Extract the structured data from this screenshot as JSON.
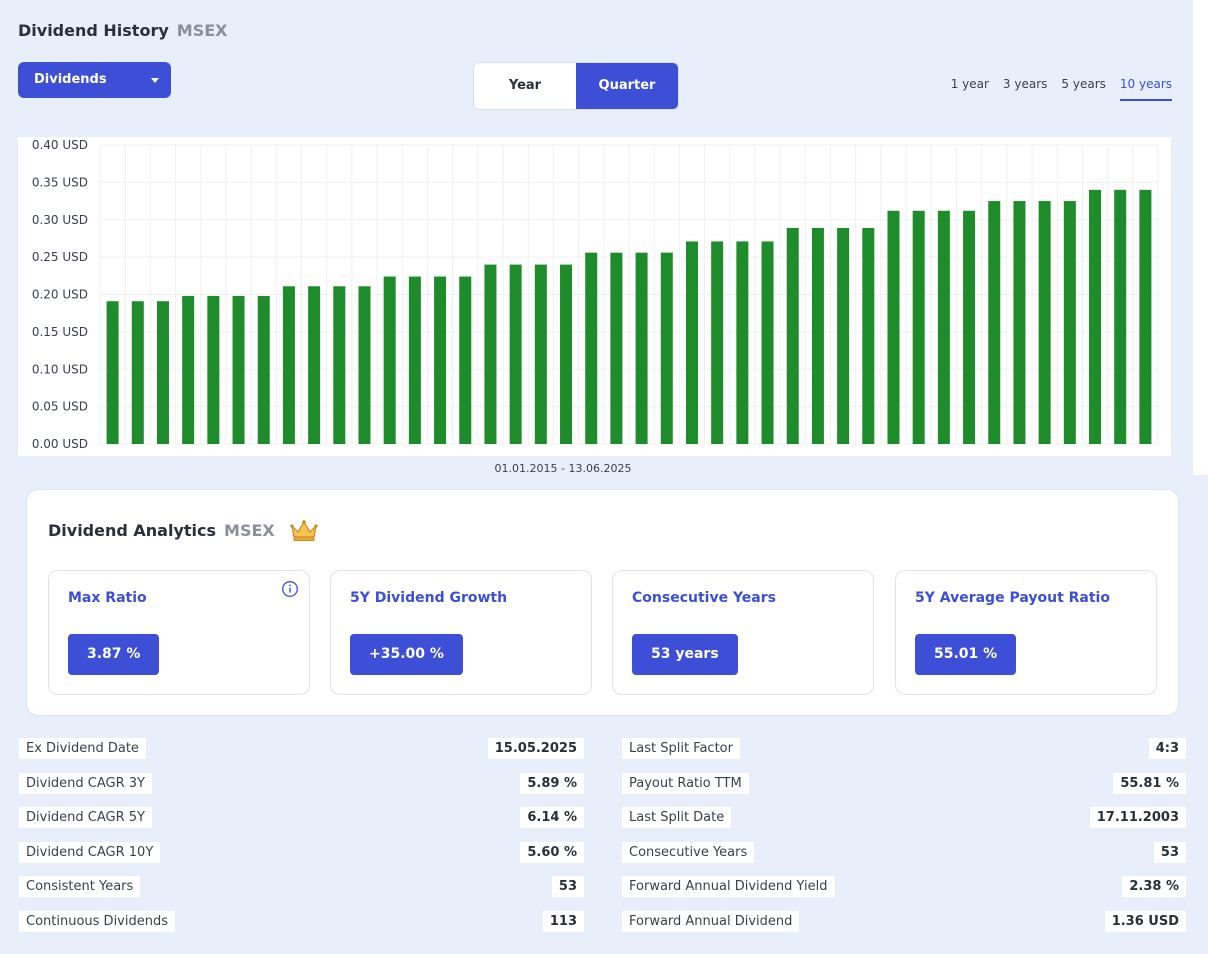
{
  "header": {
    "title": "Dividend History",
    "ticker": "MSEX"
  },
  "dropdown": {
    "selected": "Dividends"
  },
  "period_toggle": {
    "year": "Year",
    "quarter": "Quarter",
    "active": "Quarter"
  },
  "ranges": {
    "items": [
      "1 year",
      "3 years",
      "5 years",
      "10 years"
    ],
    "active": "10 years"
  },
  "chart_data": {
    "type": "bar",
    "xlabel": "01.01.2015 - 13.06.2025",
    "ylim": [
      0,
      0.4
    ],
    "y_ticks": [
      "0.00 USD",
      "0.05 USD",
      "0.10 USD",
      "0.15 USD",
      "0.20 USD",
      "0.25 USD",
      "0.30 USD",
      "0.35 USD",
      "0.40 USD"
    ],
    "grid": true,
    "bar_color": "#1e8c2a",
    "values": [
      0.191,
      0.191,
      0.191,
      0.198,
      0.198,
      0.198,
      0.198,
      0.211,
      0.211,
      0.211,
      0.211,
      0.224,
      0.224,
      0.224,
      0.224,
      0.24,
      0.24,
      0.24,
      0.24,
      0.256,
      0.256,
      0.256,
      0.256,
      0.271,
      0.271,
      0.271,
      0.271,
      0.289,
      0.289,
      0.289,
      0.289,
      0.312,
      0.312,
      0.312,
      0.312,
      0.325,
      0.325,
      0.325,
      0.325,
      0.34,
      0.34,
      0.34
    ]
  },
  "analytics": {
    "title": "Dividend Analytics",
    "ticker": "MSEX",
    "crown_icon": "crown-icon",
    "metrics": [
      {
        "label": "Max Ratio",
        "value": "3.87 %"
      },
      {
        "label": "5Y Dividend Growth",
        "value": "+35.00 %"
      },
      {
        "label": "Consecutive Years",
        "value": "53 years"
      },
      {
        "label": "5Y Average Payout Ratio",
        "value": "55.01 %"
      }
    ]
  },
  "stats_left": [
    {
      "label": "Ex Dividend Date",
      "value": "15.05.2025"
    },
    {
      "label": "Dividend CAGR 3Y",
      "value": "5.89 %"
    },
    {
      "label": "Dividend CAGR 5Y",
      "value": "6.14 %"
    },
    {
      "label": "Dividend CAGR 10Y",
      "value": "5.60 %"
    },
    {
      "label": "Consistent Years",
      "value": "53"
    },
    {
      "label": "Continuous Dividends",
      "value": "113"
    }
  ],
  "stats_right": [
    {
      "label": "Last Split Factor",
      "value": "4:3"
    },
    {
      "label": "Payout Ratio TTM",
      "value": "55.81 %"
    },
    {
      "label": "Last Split Date",
      "value": "17.11.2003"
    },
    {
      "label": "Consecutive Years",
      "value": "53"
    },
    {
      "label": "Forward Annual Dividend Yield",
      "value": "2.38 %"
    },
    {
      "label": "Forward Annual Dividend",
      "value": "1.36 USD"
    }
  ],
  "colors": {
    "accent": "#3d4fd6",
    "panel": "#e8effb",
    "bar": "#1e8c2a",
    "crown": "#e8b13a"
  }
}
